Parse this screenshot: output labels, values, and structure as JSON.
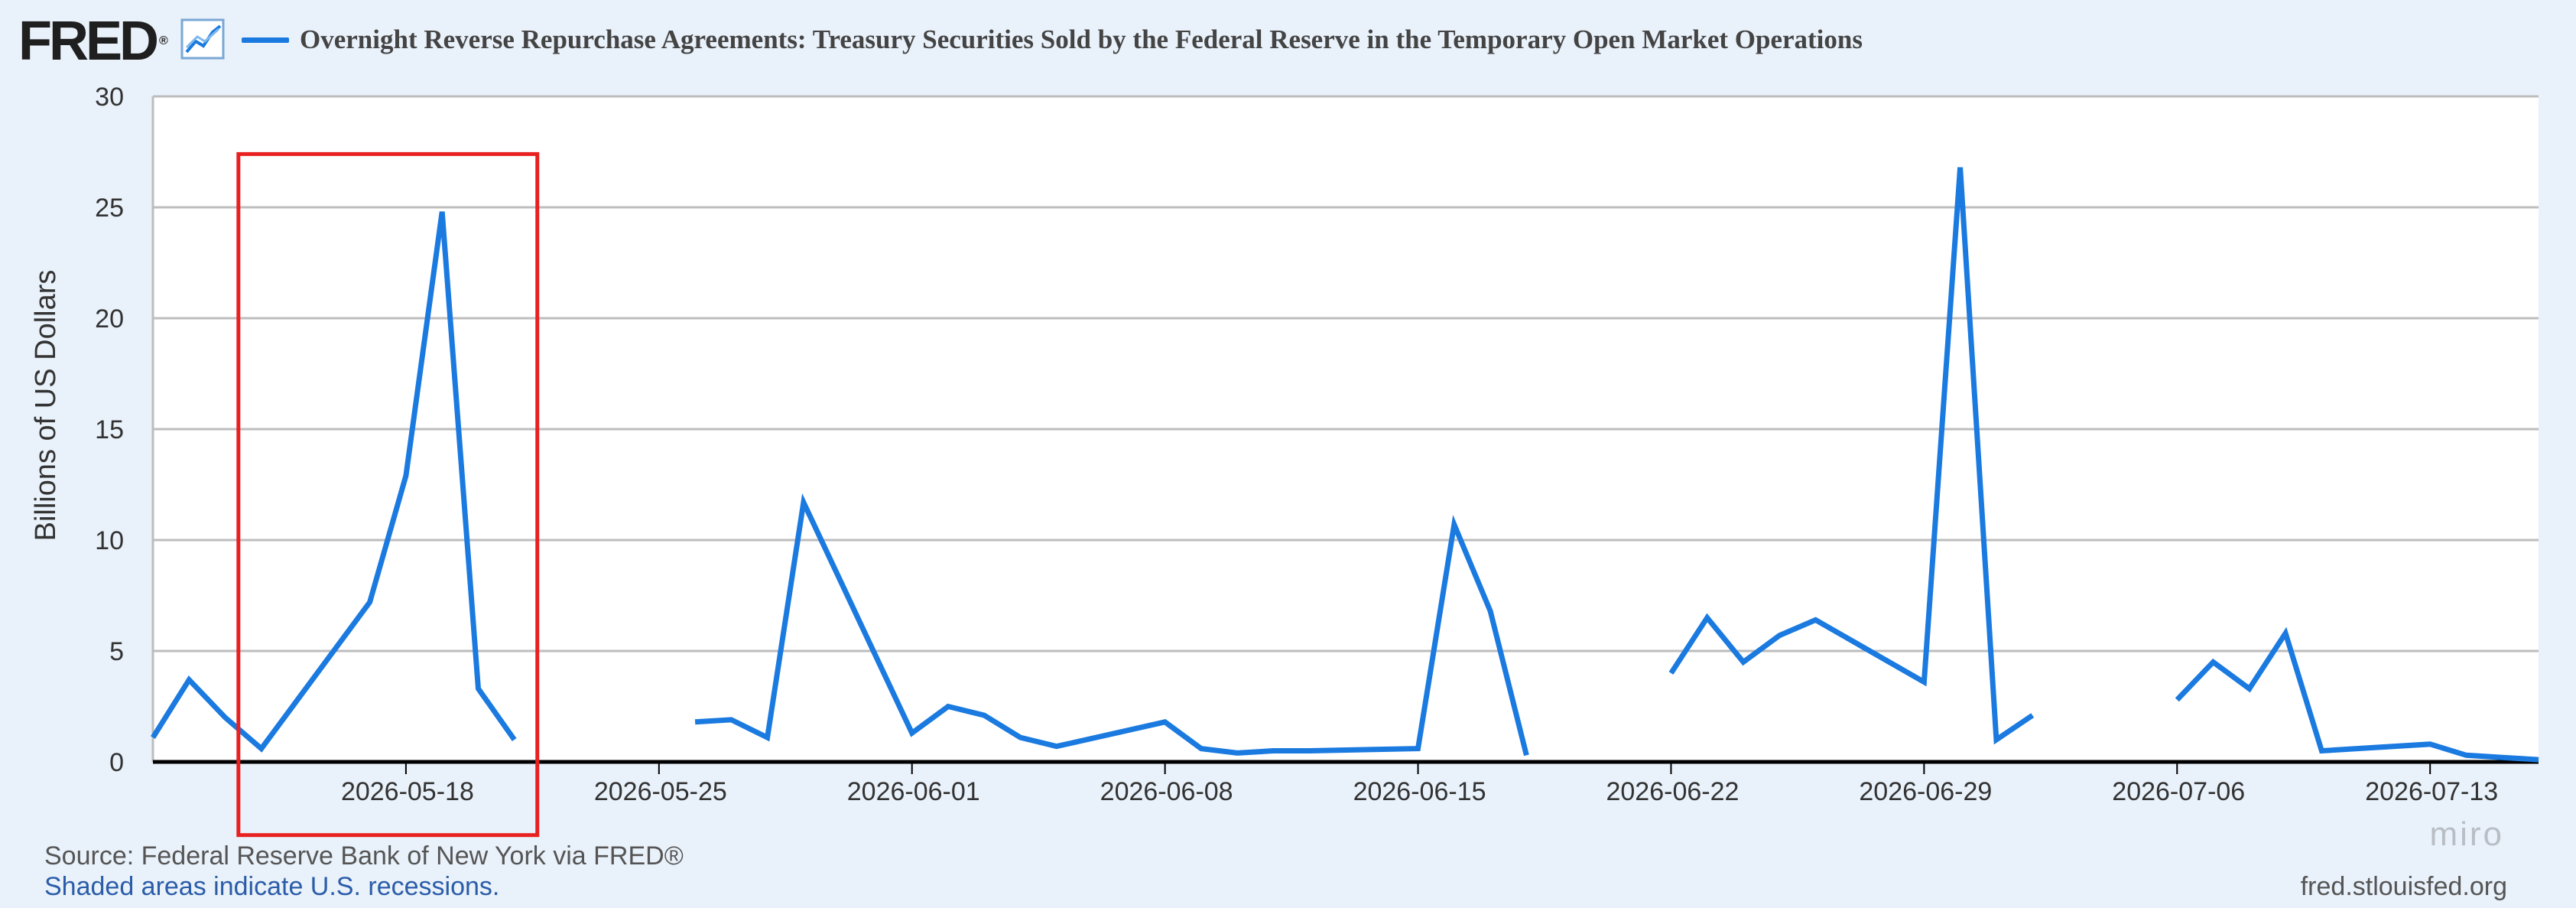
{
  "header": {
    "logo_text": "FRED",
    "logo_mark": "®",
    "chart_icon": "line-chart-icon",
    "title": "Overnight Reverse Repurchase Agreements: Treasury Securities Sold by the Federal Reserve in the Temporary Open Market Operations"
  },
  "colors": {
    "series": "#1a7ae0",
    "highlight_box": "#e8201f",
    "grid": "#bdbdbd",
    "background": "#e9f1fa",
    "plot_background": "#ffffff"
  },
  "chart_data": {
    "type": "line",
    "title": "Overnight Reverse Repurchase Agreements: Treasury Securities Sold by the Federal Reserve in the Temporary Open Market Operations",
    "xlabel": "",
    "ylabel": "Billions of US Dollars",
    "ylim": [
      0,
      30
    ],
    "xlim": [
      "2026-05-11",
      "2026-07-16"
    ],
    "yticks": [
      "0",
      "5",
      "10",
      "15",
      "20",
      "25",
      "30"
    ],
    "xticks": [
      "2026-05-18",
      "2026-05-25",
      "2026-06-01",
      "2026-06-08",
      "2026-06-15",
      "2026-06-22",
      "2026-06-29",
      "2026-07-06",
      "2026-07-13"
    ],
    "grid": true,
    "annotation": {
      "type": "highlight-box",
      "x_from": "2026-05-14",
      "x_to": "2026-05-21",
      "y_from": -3.3,
      "y_to": 27.4
    },
    "segments": [
      [
        [
          "2026-05-11",
          1.1
        ],
        [
          "2026-05-12",
          3.7
        ],
        [
          "2026-05-13",
          2.0
        ],
        [
          "2026-05-14",
          0.6
        ],
        [
          "2026-05-17",
          7.2
        ],
        [
          "2026-05-18",
          12.9
        ],
        [
          "2026-05-19",
          24.8
        ],
        [
          "2026-05-20",
          3.3
        ],
        [
          "2026-05-21",
          1.0
        ]
      ],
      [
        [
          "2026-05-26",
          1.8
        ],
        [
          "2026-05-27",
          1.9
        ],
        [
          "2026-05-28",
          1.1
        ],
        [
          "2026-05-29",
          11.7
        ],
        [
          "2026-06-01",
          1.3
        ],
        [
          "2026-06-02",
          2.5
        ],
        [
          "2026-06-03",
          2.1
        ],
        [
          "2026-06-04",
          1.1
        ],
        [
          "2026-06-05",
          0.7
        ],
        [
          "2026-06-08",
          1.8
        ],
        [
          "2026-06-09",
          0.6
        ],
        [
          "2026-06-10",
          0.4
        ],
        [
          "2026-06-11",
          0.5
        ],
        [
          "2026-06-12",
          0.5
        ],
        [
          "2026-06-15",
          0.6
        ],
        [
          "2026-06-16",
          10.7
        ],
        [
          "2026-06-17",
          6.8
        ],
        [
          "2026-06-18",
          0.3
        ]
      ],
      [
        [
          "2026-06-22",
          4.0
        ],
        [
          "2026-06-23",
          6.5
        ],
        [
          "2026-06-24",
          4.5
        ],
        [
          "2026-06-25",
          5.7
        ],
        [
          "2026-06-26",
          6.4
        ],
        [
          "2026-06-29",
          3.6
        ],
        [
          "2026-06-30",
          26.8
        ],
        [
          "2026-07-01",
          1.0
        ],
        [
          "2026-07-02",
          2.1
        ]
      ],
      [
        [
          "2026-07-06",
          2.8
        ],
        [
          "2026-07-07",
          4.5
        ],
        [
          "2026-07-08",
          3.3
        ],
        [
          "2026-07-09",
          5.8
        ],
        [
          "2026-07-10",
          0.5
        ],
        [
          "2026-07-13",
          0.8
        ],
        [
          "2026-07-14",
          0.3
        ],
        [
          "2026-07-15",
          0.2
        ],
        [
          "2026-07-16",
          0.1
        ]
      ]
    ]
  },
  "footer": {
    "source": "Source: Federal Reserve Bank of New York via FRED®",
    "recession_note": "Shaded areas indicate U.S. recessions.",
    "site": "fred.stlouisfed.org",
    "watermark": "miro"
  }
}
